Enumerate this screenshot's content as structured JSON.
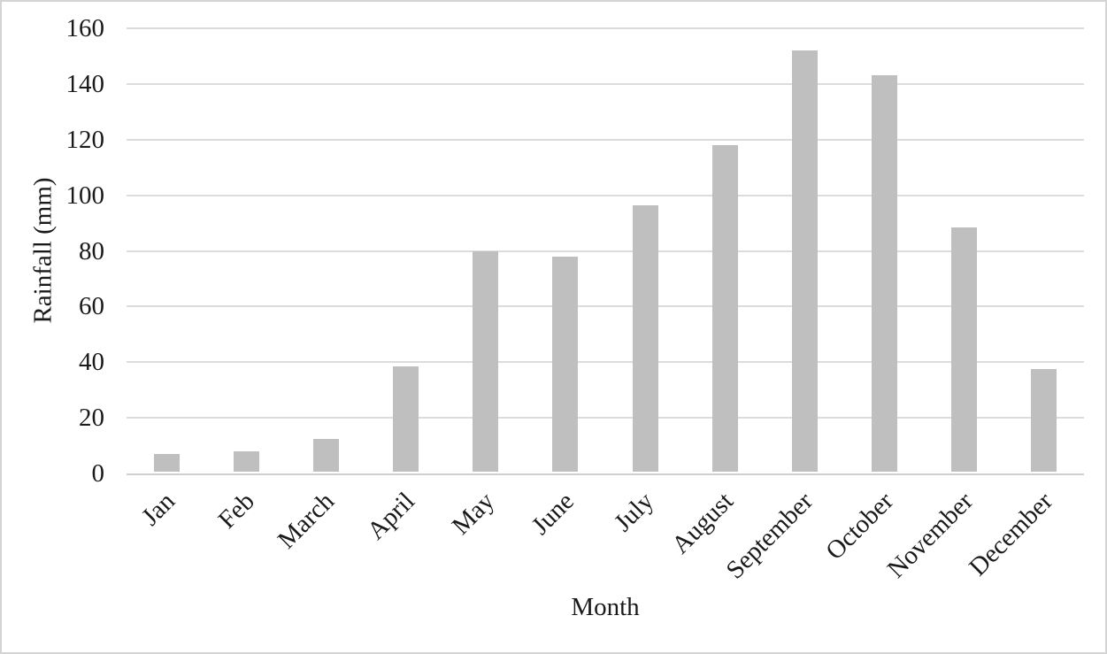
{
  "chart_data": {
    "type": "bar",
    "title": "",
    "xlabel": "Month",
    "ylabel": "Rainfall (mm)",
    "categories": [
      "Jan",
      "Feb",
      "March",
      "April",
      "May",
      "June",
      "July",
      "August",
      "September",
      "October",
      "November",
      "December"
    ],
    "values": [
      7,
      8,
      12.5,
      38.5,
      80,
      78,
      96.5,
      118,
      152,
      143,
      88.5,
      37.5
    ],
    "series_name": "Rainfall (mm)",
    "ylim": [
      0,
      160
    ],
    "y_ticks": [
      0,
      20,
      40,
      60,
      80,
      100,
      120,
      140,
      160
    ],
    "grid": "horizontal",
    "legend": "none",
    "colors": {
      "bar": "#bfbfbf",
      "gridline": "#dcdcdc",
      "axis_line": "#cfcfcf",
      "text": "#1a1a1a",
      "background": "#ffffff",
      "page_border": "#d4d4d4"
    }
  }
}
